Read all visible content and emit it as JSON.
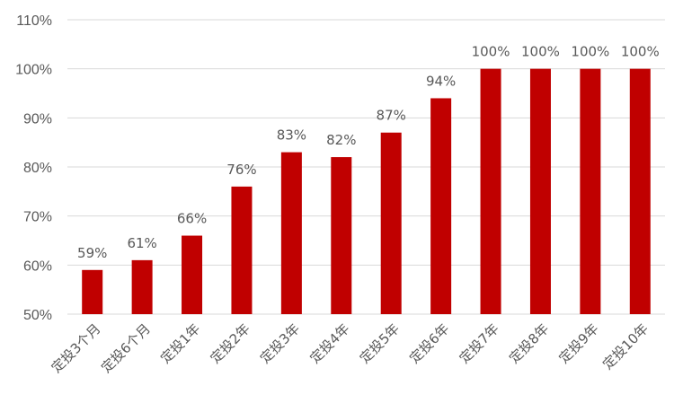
{
  "chart_data": {
    "type": "bar",
    "categories": [
      "定投3个月",
      "定投6个月",
      "定投1年",
      "定投2年",
      "定投3年",
      "定投4年",
      "定投5年",
      "定投6年",
      "定投7年",
      "定投8年",
      "定投9年",
      "定投10年"
    ],
    "values": [
      59,
      61,
      66,
      76,
      83,
      82,
      87,
      94,
      100,
      100,
      100,
      100
    ],
    "data_labels": [
      "59%",
      "61%",
      "66%",
      "76%",
      "83%",
      "82%",
      "87%",
      "94%",
      "100%",
      "100%",
      "100%",
      "100%"
    ],
    "y_ticks": [
      50,
      60,
      70,
      80,
      90,
      100,
      110
    ],
    "y_tick_labels": [
      "50%",
      "60%",
      "70%",
      "80%",
      "90%",
      "100%",
      "110%"
    ],
    "ylim": [
      50,
      110
    ],
    "grid": true,
    "bar_color": "#C00000",
    "title": "",
    "xlabel": "",
    "ylabel": ""
  }
}
